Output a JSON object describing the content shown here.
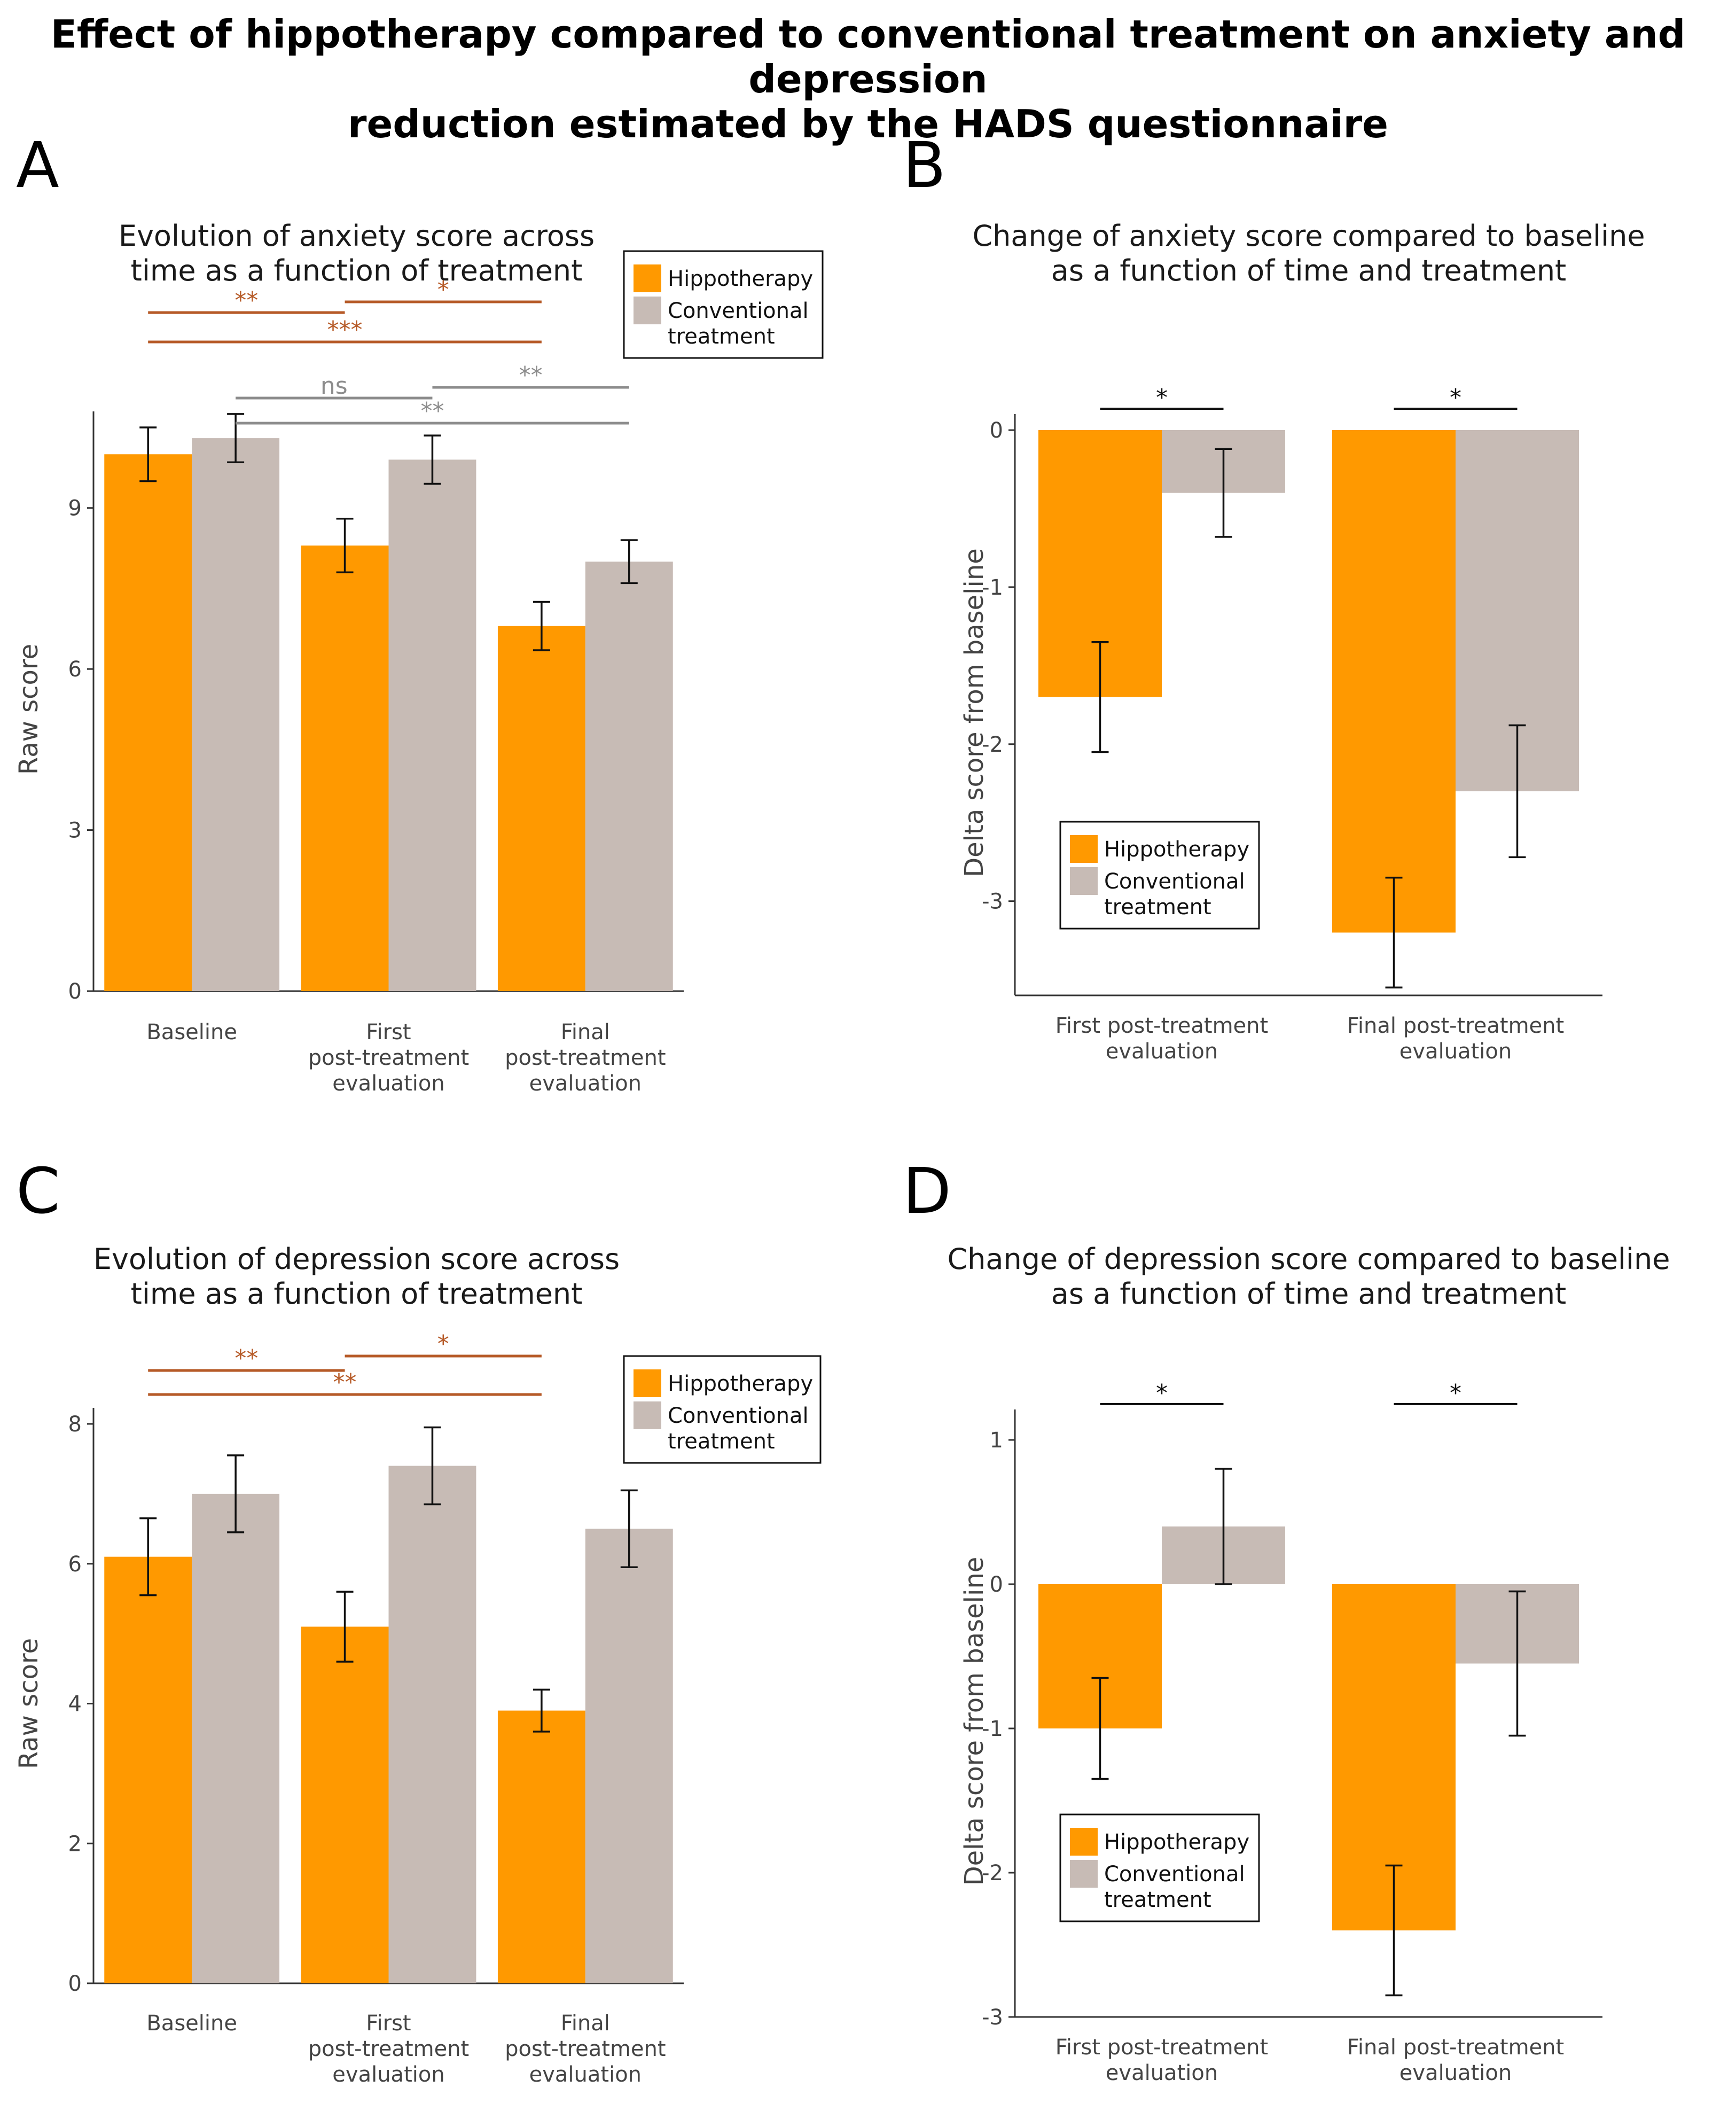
{
  "title_lines": [
    "Effect of hippotherapy compared to conventional treatment on anxiety and depression",
    "reduction estimated by the HADS questionnaire"
  ],
  "colors": {
    "hippotherapy": "#FF9900",
    "conventional": "#C7BBB5",
    "sig_hippo": "#B65A27",
    "sig_conv": "#8C8C8C",
    "axis": "#333333"
  },
  "chart_data": [
    {
      "panel": "A",
      "type": "bar",
      "title_lines": [
        "Evolution of anxiety score across",
        "time as a function of treatment"
      ],
      "ylabel": "Raw score",
      "xlabel": "",
      "ylim": [
        0,
        10.5
      ],
      "yticks": [
        0,
        3,
        6,
        9
      ],
      "categories": [
        [
          "Baseline"
        ],
        [
          "First",
          "post-treatment",
          "evaluation"
        ],
        [
          "Final",
          "post-treatment",
          "evaluation"
        ]
      ],
      "series": [
        {
          "name": "Hippotherapy",
          "values": [
            10.0,
            8.3,
            6.8
          ],
          "errors": [
            0.5,
            0.5,
            0.45
          ]
        },
        {
          "name": "Conventional treatment",
          "values": [
            10.3,
            9.9,
            8.0
          ],
          "errors": [
            0.45,
            0.45,
            0.4
          ]
        }
      ],
      "legend": {
        "position": "top-right",
        "entries": [
          [
            "Hippotherapy"
          ],
          [
            "Conventional",
            "treatment"
          ]
        ]
      },
      "significance": [
        {
          "group": "hippotherapy",
          "from": 0,
          "to": 1,
          "label": "**"
        },
        {
          "group": "hippotherapy",
          "from": 1,
          "to": 2,
          "label": "*"
        },
        {
          "group": "hippotherapy",
          "from": 0,
          "to": 2,
          "label": "***"
        },
        {
          "group": "conventional",
          "from": 0,
          "to": 1,
          "label": "ns"
        },
        {
          "group": "conventional",
          "from": 1,
          "to": 2,
          "label": "**"
        },
        {
          "group": "conventional",
          "from": 0,
          "to": 2,
          "label": "**"
        }
      ]
    },
    {
      "panel": "B",
      "type": "bar",
      "title_lines": [
        "Change of anxiety score compared to baseline",
        "as a function of time and treatment"
      ],
      "ylabel": "Delta score from baseline",
      "xlabel": "",
      "ylim": [
        -3.6,
        0
      ],
      "yticks": [
        0,
        -1,
        -2,
        -3
      ],
      "categories": [
        [
          "First post-treatment",
          "evaluation"
        ],
        [
          "Final post-treatment",
          "evaluation"
        ]
      ],
      "series": [
        {
          "name": "Hippotherapy",
          "values": [
            -1.7,
            -3.2
          ],
          "errors": [
            0.35,
            0.35
          ]
        },
        {
          "name": "Conventional treatment",
          "values": [
            -0.4,
            -2.3
          ],
          "errors": [
            0.28,
            0.42
          ]
        }
      ],
      "legend": {
        "position": "bottom-left",
        "entries": [
          [
            "Hippotherapy"
          ],
          [
            "Conventional",
            "treatment"
          ]
        ]
      },
      "significance": [
        {
          "group": "between",
          "category": 0,
          "label": "*"
        },
        {
          "group": "between",
          "category": 1,
          "label": "*"
        }
      ]
    },
    {
      "panel": "C",
      "type": "bar",
      "title_lines": [
        "Evolution of depression score across",
        "time as a function of treatment"
      ],
      "ylabel": "Raw score",
      "xlabel": "",
      "ylim": [
        0,
        8
      ],
      "yticks": [
        0,
        2,
        4,
        6,
        8
      ],
      "categories": [
        [
          "Baseline"
        ],
        [
          "First",
          "post-treatment",
          "evaluation"
        ],
        [
          "Final",
          "post-treatment",
          "evaluation"
        ]
      ],
      "series": [
        {
          "name": "Hippotherapy",
          "values": [
            6.1,
            5.1,
            3.9
          ],
          "errors": [
            0.55,
            0.5,
            0.3
          ]
        },
        {
          "name": "Conventional treatment",
          "values": [
            7.0,
            7.4,
            6.5
          ],
          "errors": [
            0.55,
            0.55,
            0.55
          ]
        }
      ],
      "legend": {
        "position": "top-right",
        "entries": [
          [
            "Hippotherapy"
          ],
          [
            "Conventional",
            "treatment"
          ]
        ]
      },
      "significance": [
        {
          "group": "hippotherapy",
          "from": 0,
          "to": 1,
          "label": "**"
        },
        {
          "group": "hippotherapy",
          "from": 1,
          "to": 2,
          "label": "*"
        },
        {
          "group": "hippotherapy",
          "from": 0,
          "to": 2,
          "label": "**"
        }
      ]
    },
    {
      "panel": "D",
      "type": "bar",
      "title_lines": [
        "Change of depression score compared to baseline",
        "as a function of time and treatment"
      ],
      "ylabel": "Delta score from baseline",
      "xlabel": "",
      "ylim": [
        -3,
        1.1
      ],
      "yticks": [
        1,
        0,
        -1,
        -2,
        -3
      ],
      "categories": [
        [
          "First post-treatment",
          "evaluation"
        ],
        [
          "Final post-treatment",
          "evaluation"
        ]
      ],
      "series": [
        {
          "name": "Hippotherapy",
          "values": [
            -1.0,
            -2.4
          ],
          "errors": [
            0.35,
            0.45
          ]
        },
        {
          "name": "Conventional treatment",
          "values": [
            0.4,
            -0.55
          ],
          "errors": [
            0.4,
            0.5
          ]
        }
      ],
      "legend": {
        "position": "bottom-left",
        "entries": [
          [
            "Hippotherapy"
          ],
          [
            "Conventional",
            "treatment"
          ]
        ]
      },
      "significance": [
        {
          "group": "between",
          "category": 0,
          "label": "*"
        },
        {
          "group": "between",
          "category": 1,
          "label": "*"
        }
      ]
    }
  ]
}
